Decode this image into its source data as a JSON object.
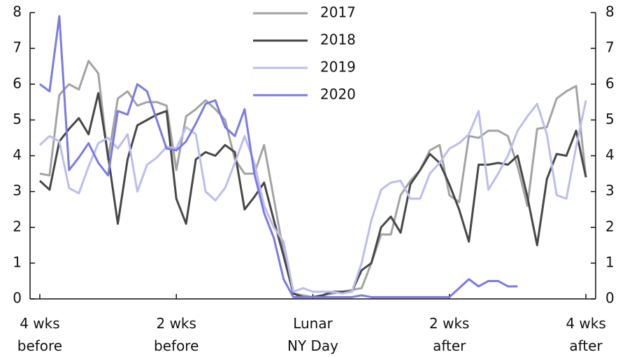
{
  "chart_data": {
    "type": "line",
    "x": [
      -28,
      -27,
      -26,
      -25,
      -24,
      -23,
      -22,
      -21,
      -20,
      -19,
      -18,
      -17,
      -16,
      -15,
      -14,
      -13,
      -12,
      -11,
      -10,
      -9,
      -8,
      -7,
      -6,
      -5,
      -4,
      -3,
      -2,
      -1,
      0,
      1,
      2,
      3,
      4,
      5,
      6,
      7,
      8,
      9,
      10,
      11,
      12,
      13,
      14,
      15,
      16,
      17,
      18,
      19,
      20,
      21,
      22,
      23,
      24,
      25,
      26,
      27,
      28
    ],
    "xlim": [
      -29,
      29
    ],
    "xticks": [
      {
        "value": -28,
        "label": "4 wks\nbefore"
      },
      {
        "value": -14,
        "label": "2 wks\nbefore"
      },
      {
        "value": 0,
        "label": "Lunar\nNY Day"
      },
      {
        "value": 14,
        "label": "2 wks\nafter"
      },
      {
        "value": 28,
        "label": "4 wks\nafter"
      }
    ],
    "ylim": [
      0,
      8
    ],
    "yticks": [
      0,
      1,
      2,
      3,
      4,
      5,
      6,
      7,
      8
    ],
    "y2lim": [
      0,
      8
    ],
    "y2ticks": [
      0,
      1,
      2,
      3,
      4,
      5,
      6,
      7,
      8
    ],
    "legend": "upper center",
    "series": [
      {
        "name": "2017",
        "color": "#a3a3a3",
        "values": [
          3.5,
          3.45,
          5.7,
          6.0,
          5.85,
          6.65,
          6.3,
          3.9,
          5.6,
          5.8,
          5.4,
          5.5,
          5.5,
          5.4,
          3.6,
          5.1,
          5.3,
          5.55,
          5.3,
          5.0,
          3.9,
          3.5,
          3.5,
          4.3,
          2.8,
          1.3,
          0.15,
          0.1,
          0.05,
          0.1,
          0.15,
          0.2,
          0.25,
          0.3,
          1.0,
          1.8,
          1.8,
          2.9,
          3.3,
          3.6,
          4.15,
          4.3,
          2.9,
          2.7,
          4.55,
          4.5,
          4.7,
          4.7,
          4.55,
          3.7,
          2.6,
          4.75,
          4.8,
          5.6,
          5.8,
          5.95,
          3.4
        ]
      },
      {
        "name": "2018",
        "color": "#474747",
        "values": [
          3.3,
          3.05,
          4.4,
          4.75,
          5.05,
          4.6,
          5.75,
          4.0,
          2.1,
          3.9,
          4.85,
          5.0,
          5.15,
          5.25,
          2.8,
          2.1,
          3.9,
          4.1,
          4.0,
          4.3,
          4.1,
          2.5,
          2.85,
          3.25,
          2.2,
          1.2,
          0.15,
          0.05,
          0.05,
          0.1,
          0.2,
          0.2,
          0.2,
          0.8,
          1.0,
          2.0,
          2.3,
          1.85,
          3.2,
          3.6,
          4.05,
          3.8,
          3.2,
          2.5,
          1.6,
          3.75,
          3.75,
          3.8,
          3.75,
          4.0,
          2.85,
          1.5,
          3.35,
          4.05,
          4.0,
          4.7,
          3.4
        ]
      },
      {
        "name": "2019",
        "color": "#bcbcf2",
        "values": [
          4.3,
          4.55,
          4.4,
          3.1,
          2.95,
          3.7,
          4.35,
          4.5,
          4.2,
          4.6,
          3.0,
          3.75,
          3.95,
          4.25,
          4.2,
          4.8,
          4.6,
          3.0,
          2.75,
          3.1,
          3.8,
          4.55,
          3.8,
          2.6,
          2.0,
          1.6,
          0.2,
          0.3,
          0.2,
          0.2,
          0.2,
          0.15,
          0.2,
          1.0,
          2.2,
          3.05,
          3.25,
          3.3,
          2.8,
          2.8,
          3.5,
          3.8,
          4.2,
          4.35,
          4.6,
          5.25,
          3.05,
          3.5,
          4.0,
          4.7,
          5.1,
          5.45,
          4.6,
          2.9,
          2.8,
          4.25,
          5.55
        ]
      },
      {
        "name": "2020",
        "color": "#7a7ae8",
        "values": [
          6.0,
          5.8,
          7.9,
          3.6,
          3.95,
          4.35,
          3.8,
          3.45,
          5.25,
          5.15,
          6.0,
          5.8,
          5.0,
          4.2,
          4.15,
          4.4,
          4.9,
          5.45,
          5.55,
          4.8,
          4.55,
          5.3,
          3.5,
          2.4,
          1.7,
          0.55,
          0.05,
          0.05,
          0.05,
          0.05,
          0.05,
          0.05,
          0.05,
          0.1,
          0.05,
          0.05,
          0.05,
          0.05,
          0.05,
          0.05,
          0.05,
          0.05,
          0.05,
          0.3,
          0.55,
          0.35,
          0.5,
          0.5,
          0.35,
          0.35,
          null,
          null,
          null,
          null,
          null,
          null,
          null
        ]
      }
    ]
  }
}
